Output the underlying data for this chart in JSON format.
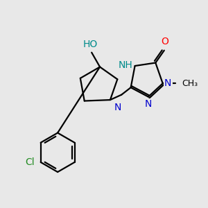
{
  "background_color": "#e8e8e8",
  "bond_color": "#000000",
  "atom_colors": {
    "N": "#0000cd",
    "O": "#ff0000",
    "Cl": "#228b22",
    "HO": "#008b8b",
    "NH": "#008b8b",
    "C": "#000000"
  },
  "font_size": 10,
  "lw": 1.6
}
